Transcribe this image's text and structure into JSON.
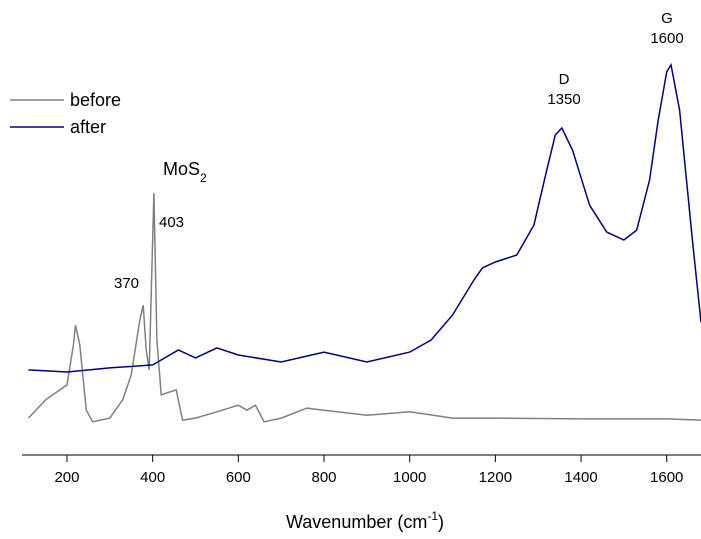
{
  "chart_data": {
    "type": "line",
    "xlabel": {
      "text": "Wavenumber (cm",
      "sup": "-1",
      "end": ")"
    },
    "annotations": {
      "mos": {
        "text": "MoS",
        "sub": "2"
      },
      "p403": "403",
      "p370": "370",
      "d": "D",
      "d_pos": "1350",
      "g": "G",
      "g_pos": "1600"
    },
    "xlim": [
      95,
      1680
    ],
    "ylim": [
      0,
      100
    ],
    "xticks": [
      200,
      400,
      600,
      800,
      1000,
      1200,
      1400,
      1600
    ],
    "legend": "upper left",
    "series": [
      {
        "name": "before",
        "color": "#808080",
        "x": [
          110,
          150,
          200,
          215,
          220,
          230,
          245,
          260,
          300,
          330,
          350,
          370,
          378,
          385,
          392,
          403,
          410,
          420,
          440,
          455,
          470,
          500,
          550,
          600,
          620,
          640,
          660,
          700,
          760,
          800,
          900,
          1000,
          1100,
          1200,
          1400,
          1600,
          1680
        ],
        "values": [
          8.9,
          13.3,
          16.9,
          26.5,
          31.3,
          26.5,
          10.8,
          8.0,
          8.9,
          13.3,
          19.3,
          32.5,
          36.1,
          25.3,
          20.5,
          63.1,
          27.7,
          14.5,
          15.2,
          15.7,
          8.4,
          8.9,
          10.4,
          12.0,
          10.8,
          12.0,
          8.0,
          8.9,
          11.3,
          10.8,
          9.6,
          10.4,
          8.9,
          8.9,
          8.7,
          8.7,
          8.4
        ]
      },
      {
        "name": "after",
        "color": "#000080",
        "x": [
          110,
          200,
          300,
          400,
          460,
          500,
          550,
          600,
          700,
          800,
          900,
          1000,
          1050,
          1100,
          1150,
          1170,
          1200,
          1250,
          1290,
          1320,
          1340,
          1355,
          1380,
          1420,
          1460,
          1500,
          1530,
          1560,
          1580,
          1600,
          1610,
          1630,
          1660,
          1680
        ],
        "values": [
          20.5,
          20.0,
          21.0,
          21.7,
          25.3,
          23.4,
          25.8,
          24.1,
          22.4,
          24.8,
          22.4,
          24.8,
          27.7,
          33.7,
          42.2,
          45.1,
          46.5,
          48.2,
          55.4,
          68.7,
          77.1,
          78.8,
          73.5,
          60.2,
          53.7,
          51.8,
          54.2,
          66.3,
          80.7,
          92.3,
          94.0,
          83.1,
          51.8,
          32.0
        ]
      }
    ]
  }
}
